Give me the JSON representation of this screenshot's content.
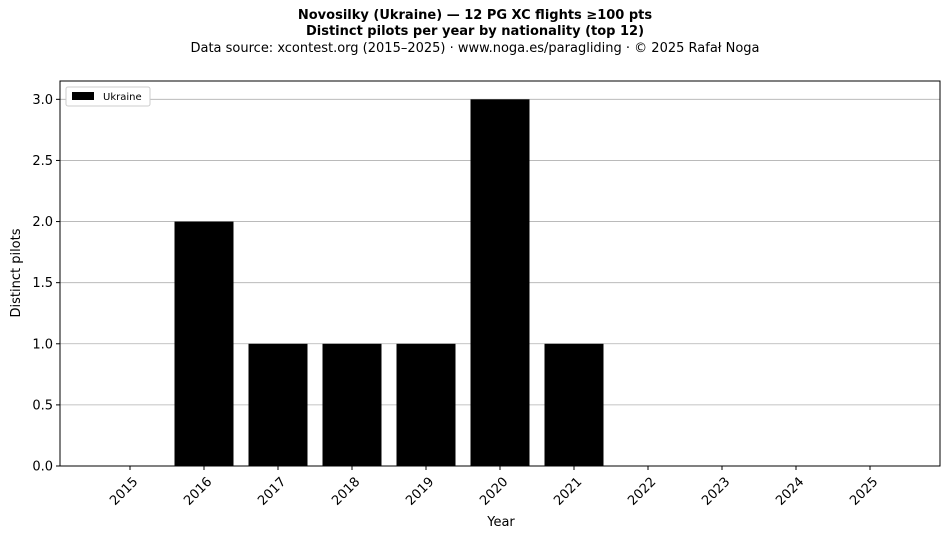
{
  "chart_data": {
    "type": "bar",
    "title": "Novosilky (Ukraine)  —  12 PG XC flights ≥100 pts",
    "subtitle": "Distinct pilots per year by nationality (top 12)",
    "source": "Data source: xcontest.org (2015–2025)  ·  www.noga.es/paragliding  ·  © 2025 Rafał Noga",
    "xlabel": "Year",
    "ylabel": "Distinct pilots",
    "categories": [
      "2015",
      "2016",
      "2017",
      "2018",
      "2019",
      "2020",
      "2021",
      "2022",
      "2023",
      "2024",
      "2025"
    ],
    "series": [
      {
        "name": "Ukraine",
        "color": "#000000",
        "values": [
          0,
          2,
          1,
          1,
          1,
          3,
          1,
          0,
          0,
          0,
          0
        ]
      }
    ],
    "yticks": [
      "0.0",
      "0.5",
      "1.0",
      "1.5",
      "2.0",
      "2.5",
      "3.0"
    ],
    "ylim": [
      0,
      3.15
    ],
    "grid": "horizontal",
    "legend_position": "top-left"
  }
}
